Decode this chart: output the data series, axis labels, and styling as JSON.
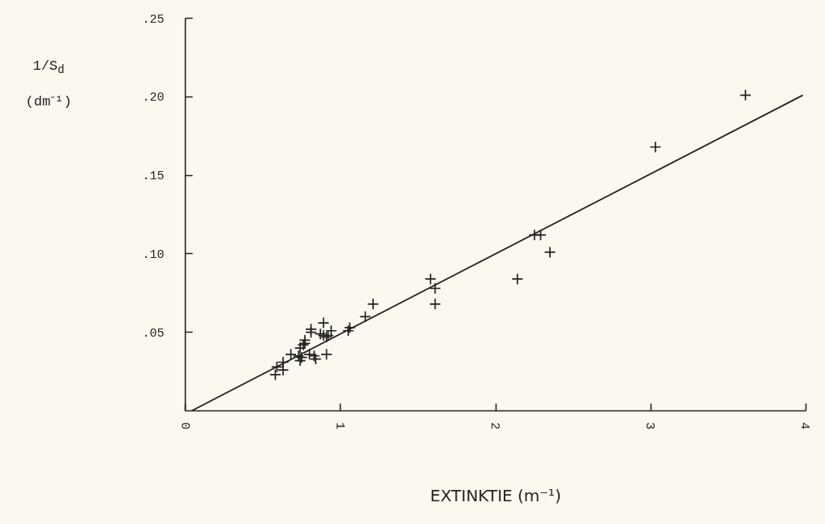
{
  "chart_data": {
    "type": "scatter",
    "xlabel": "EXTINKTIE (m⁻¹)",
    "ylabel": "1/S$_{d}$\n(dm⁻¹)",
    "xlim": [
      0,
      4
    ],
    "xticks": [
      0,
      1,
      2,
      3,
      4
    ],
    "ylim": [
      0,
      0.25
    ],
    "yticks": [
      {
        "value": 0.05,
        "label": ".05"
      },
      {
        "value": 0.1,
        "label": ".10"
      },
      {
        "value": 0.15,
        "label": ".15"
      },
      {
        "value": 0.2,
        "label": ".20"
      },
      {
        "value": 0.25,
        "label": ".25"
      }
    ],
    "grid": false,
    "series": [
      {
        "marker": "cross",
        "color": "#222222",
        "x": [
          3.61,
          3.03,
          2.25,
          2.29,
          2.35,
          2.14,
          1.58,
          1.61,
          1.61,
          1.21,
          1.16,
          1.06,
          1.05,
          0.89,
          0.81,
          0.81,
          0.94,
          0.89,
          0.91,
          0.92,
          0.87,
          0.77,
          0.77,
          0.76,
          0.74,
          0.68,
          0.73,
          0.75,
          0.74,
          0.8,
          0.83,
          0.84,
          0.91,
          0.63,
          0.59,
          0.63,
          0.58
        ],
        "values": [
          0.201,
          0.168,
          0.112,
          0.112,
          0.101,
          0.084,
          0.084,
          0.078,
          0.068,
          0.068,
          0.06,
          0.053,
          0.051,
          0.056,
          0.052,
          0.05,
          0.051,
          0.048,
          0.047,
          0.048,
          0.049,
          0.045,
          0.043,
          0.042,
          0.04,
          0.036,
          0.035,
          0.034,
          0.032,
          0.036,
          0.035,
          0.033,
          0.036,
          0.031,
          0.028,
          0.026,
          0.023
        ]
      },
      {
        "type": "line",
        "color": "#222222",
        "x": [
          0.04,
          3.98
        ],
        "values": [
          0.0,
          0.201
        ]
      }
    ]
  }
}
